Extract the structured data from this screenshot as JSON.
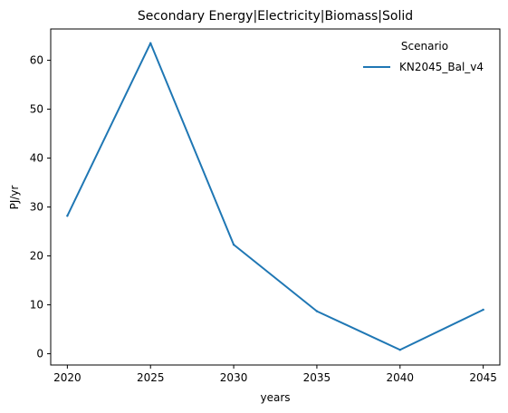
{
  "chart_data": {
    "type": "line",
    "title": "Secondary Energy|Electricity|Biomass|Solid",
    "xlabel": "years",
    "ylabel": "PJ/yr",
    "x": [
      2020,
      2025,
      2030,
      2035,
      2040,
      2045
    ],
    "x_ticks": [
      "2020",
      "2025",
      "2030",
      "2035",
      "2040",
      "2045"
    ],
    "y_ticks": [
      "0",
      "10",
      "20",
      "30",
      "40",
      "50",
      "60"
    ],
    "xlim": [
      2019.0,
      2046.0
    ],
    "ylim": [
      -2.3,
      66.4
    ],
    "grid": false,
    "legend": {
      "title": "Scenario",
      "placement": "top-right"
    },
    "series": [
      {
        "name": "KN2045_Bal_v4",
        "color": "#1f77b4",
        "values": [
          28.2,
          63.5,
          22.3,
          8.7,
          0.8,
          9.0
        ]
      }
    ]
  }
}
